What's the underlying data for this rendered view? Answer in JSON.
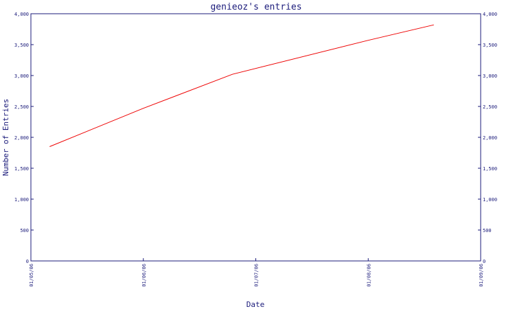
{
  "chart_data": {
    "type": "line",
    "title": "genieoz's entries",
    "xlabel": "Date",
    "ylabel": "Number of Entries",
    "x_ticks": [
      "01/05/06",
      "01/06/06",
      "01/07/06",
      "01/08/06",
      "01/09/06"
    ],
    "y_ticks": [
      "0",
      "500",
      "1,000",
      "1,500",
      "2,000",
      "2,500",
      "3,000",
      "3,500",
      "4,000"
    ],
    "ylim": [
      0,
      4000
    ],
    "xlim": [
      "2006-01-05",
      "2006-01-09"
    ],
    "grid": false,
    "series": [
      {
        "color": "#ee0000",
        "points": [
          {
            "x": "2006-01-05 04:00",
            "y": 1850
          },
          {
            "x": "2006-01-06 00:00",
            "y": 2470
          },
          {
            "x": "2006-01-06 19:00",
            "y": 3020
          },
          {
            "x": "2006-01-08 00:00",
            "y": 3570
          },
          {
            "x": "2006-01-08 14:00",
            "y": 3820
          }
        ]
      }
    ]
  },
  "colors": {
    "axis": "#1a1a7a",
    "line": "#ee0000"
  }
}
